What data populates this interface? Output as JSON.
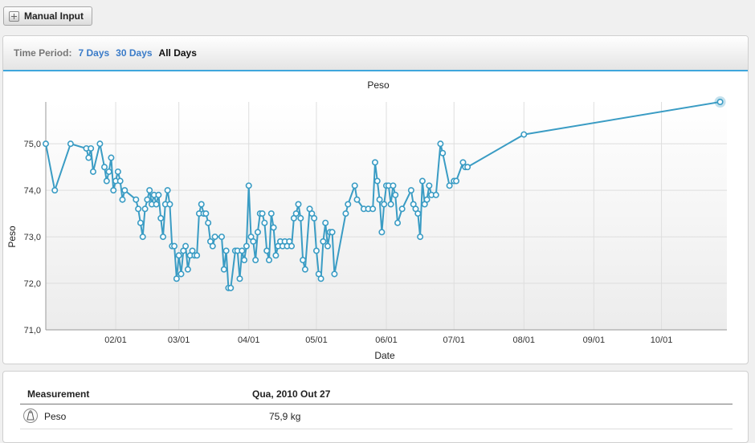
{
  "toolbar": {
    "manual_input_label": "Manual Input",
    "manual_input_icon": "plus-icon"
  },
  "period": {
    "label": "Time Period:",
    "options": [
      "7 Days",
      "30 Days",
      "All Days"
    ],
    "selected": "All Days"
  },
  "chart_data": {
    "type": "line",
    "title": "Peso",
    "xlabel": "Date",
    "ylabel": "Peso",
    "ylim": [
      71.0,
      75.9
    ],
    "yticks": [
      "71,0",
      "72,0",
      "73,0",
      "74,0",
      "75,0"
    ],
    "xticks": [
      "02/01",
      "03/01",
      "04/01",
      "05/01",
      "06/01",
      "07/01",
      "08/01",
      "09/01",
      "10/01"
    ],
    "xrange": [
      "2010-01-01",
      "2010-10-30"
    ],
    "grid": true,
    "line_color": "#3a9cc4",
    "series": [
      {
        "points": [
          [
            "2010-01-01",
            75.0
          ],
          [
            "2010-01-05",
            74.0
          ],
          [
            "2010-01-12",
            75.0
          ],
          [
            "2010-01-19",
            74.9
          ],
          [
            "2010-01-20",
            74.7
          ],
          [
            "2010-01-21",
            74.9
          ],
          [
            "2010-01-22",
            74.4
          ],
          [
            "2010-01-25",
            75.0
          ],
          [
            "2010-01-27",
            74.5
          ],
          [
            "2010-01-28",
            74.2
          ],
          [
            "2010-01-29",
            74.4
          ],
          [
            "2010-01-30",
            74.7
          ],
          [
            "2010-01-31",
            74.0
          ],
          [
            "2010-02-01",
            74.2
          ],
          [
            "2010-02-02",
            74.4
          ],
          [
            "2010-02-03",
            74.2
          ],
          [
            "2010-02-04",
            73.8
          ],
          [
            "2010-02-05",
            74.0
          ],
          [
            "2010-02-10",
            73.8
          ],
          [
            "2010-02-11",
            73.6
          ],
          [
            "2010-02-12",
            73.3
          ],
          [
            "2010-02-13",
            73.0
          ],
          [
            "2010-02-14",
            73.6
          ],
          [
            "2010-02-15",
            73.8
          ],
          [
            "2010-02-16",
            74.0
          ],
          [
            "2010-02-17",
            73.7
          ],
          [
            "2010-02-18",
            73.9
          ],
          [
            "2010-02-19",
            73.7
          ],
          [
            "2010-02-20",
            73.9
          ],
          [
            "2010-02-21",
            73.4
          ],
          [
            "2010-02-22",
            73.0
          ],
          [
            "2010-02-23",
            73.7
          ],
          [
            "2010-02-24",
            74.0
          ],
          [
            "2010-02-25",
            73.7
          ],
          [
            "2010-02-26",
            72.8
          ],
          [
            "2010-02-27",
            72.8
          ],
          [
            "2010-02-28",
            72.1
          ],
          [
            "2010-03-01",
            72.6
          ],
          [
            "2010-03-02",
            72.2
          ],
          [
            "2010-03-03",
            72.7
          ],
          [
            "2010-03-04",
            72.8
          ],
          [
            "2010-03-05",
            72.3
          ],
          [
            "2010-03-06",
            72.6
          ],
          [
            "2010-03-07",
            72.7
          ],
          [
            "2010-03-08",
            72.6
          ],
          [
            "2010-03-09",
            72.6
          ],
          [
            "2010-03-10",
            73.5
          ],
          [
            "2010-03-11",
            73.7
          ],
          [
            "2010-03-12",
            73.5
          ],
          [
            "2010-03-13",
            73.5
          ],
          [
            "2010-03-14",
            73.3
          ],
          [
            "2010-03-15",
            72.9
          ],
          [
            "2010-03-16",
            72.8
          ],
          [
            "2010-03-17",
            73.0
          ],
          [
            "2010-03-20",
            73.0
          ],
          [
            "2010-03-21",
            72.3
          ],
          [
            "2010-03-22",
            72.7
          ],
          [
            "2010-03-23",
            71.9
          ],
          [
            "2010-03-24",
            71.9
          ],
          [
            "2010-03-26",
            72.7
          ],
          [
            "2010-03-27",
            72.7
          ],
          [
            "2010-03-28",
            72.1
          ],
          [
            "2010-03-29",
            72.7
          ],
          [
            "2010-03-30",
            72.5
          ],
          [
            "2010-03-31",
            72.8
          ],
          [
            "2010-04-01",
            74.1
          ],
          [
            "2010-04-02",
            73.0
          ],
          [
            "2010-04-03",
            72.9
          ],
          [
            "2010-04-04",
            72.5
          ],
          [
            "2010-04-05",
            73.1
          ],
          [
            "2010-04-06",
            73.5
          ],
          [
            "2010-04-07",
            73.5
          ],
          [
            "2010-04-08",
            73.3
          ],
          [
            "2010-04-09",
            72.7
          ],
          [
            "2010-04-10",
            72.5
          ],
          [
            "2010-04-11",
            73.5
          ],
          [
            "2010-04-12",
            73.2
          ],
          [
            "2010-04-13",
            72.6
          ],
          [
            "2010-04-14",
            72.8
          ],
          [
            "2010-04-15",
            72.9
          ],
          [
            "2010-04-16",
            72.8
          ],
          [
            "2010-04-17",
            72.9
          ],
          [
            "2010-04-18",
            72.8
          ],
          [
            "2010-04-19",
            72.9
          ],
          [
            "2010-04-20",
            72.8
          ],
          [
            "2010-04-21",
            73.4
          ],
          [
            "2010-04-22",
            73.5
          ],
          [
            "2010-04-23",
            73.7
          ],
          [
            "2010-04-24",
            73.4
          ],
          [
            "2010-04-25",
            72.5
          ],
          [
            "2010-04-26",
            72.3
          ],
          [
            "2010-04-28",
            73.6
          ],
          [
            "2010-04-29",
            73.5
          ],
          [
            "2010-04-30",
            73.4
          ],
          [
            "2010-05-01",
            72.7
          ],
          [
            "2010-05-02",
            72.2
          ],
          [
            "2010-05-03",
            72.1
          ],
          [
            "2010-05-04",
            72.9
          ],
          [
            "2010-05-05",
            73.3
          ],
          [
            "2010-05-06",
            72.8
          ],
          [
            "2010-05-07",
            73.1
          ],
          [
            "2010-05-08",
            73.1
          ],
          [
            "2010-05-09",
            72.2
          ],
          [
            "2010-05-14",
            73.5
          ],
          [
            "2010-05-15",
            73.7
          ],
          [
            "2010-05-18",
            74.1
          ],
          [
            "2010-05-19",
            73.8
          ],
          [
            "2010-05-22",
            73.6
          ],
          [
            "2010-05-24",
            73.6
          ],
          [
            "2010-05-26",
            73.6
          ],
          [
            "2010-05-27",
            74.6
          ],
          [
            "2010-05-28",
            74.2
          ],
          [
            "2010-05-29",
            73.8
          ],
          [
            "2010-05-30",
            73.1
          ],
          [
            "2010-05-31",
            73.7
          ],
          [
            "2010-06-01",
            74.1
          ],
          [
            "2010-06-02",
            74.1
          ],
          [
            "2010-06-03",
            73.7
          ],
          [
            "2010-06-04",
            74.1
          ],
          [
            "2010-06-05",
            73.9
          ],
          [
            "2010-06-06",
            73.3
          ],
          [
            "2010-06-08",
            73.6
          ],
          [
            "2010-06-12",
            74.0
          ],
          [
            "2010-06-13",
            73.7
          ],
          [
            "2010-06-14",
            73.6
          ],
          [
            "2010-06-15",
            73.5
          ],
          [
            "2010-06-16",
            73.0
          ],
          [
            "2010-06-17",
            74.2
          ],
          [
            "2010-06-18",
            73.7
          ],
          [
            "2010-06-19",
            73.8
          ],
          [
            "2010-06-20",
            74.1
          ],
          [
            "2010-06-21",
            73.9
          ],
          [
            "2010-06-23",
            73.9
          ],
          [
            "2010-06-25",
            75.0
          ],
          [
            "2010-06-26",
            74.8
          ],
          [
            "2010-06-29",
            74.1
          ],
          [
            "2010-07-01",
            74.2
          ],
          [
            "2010-07-02",
            74.2
          ],
          [
            "2010-07-05",
            74.6
          ],
          [
            "2010-07-06",
            74.5
          ],
          [
            "2010-07-07",
            74.5
          ],
          [
            "2010-08-01",
            75.2
          ],
          [
            "2010-10-27",
            75.9
          ]
        ]
      }
    ]
  },
  "table": {
    "headers": {
      "measurement": "Measurement",
      "date": "Qua, 2010 Out 27"
    },
    "rows": [
      {
        "icon": "scale-weight-icon",
        "label": "Peso",
        "value": "75,9 kg"
      }
    ]
  }
}
